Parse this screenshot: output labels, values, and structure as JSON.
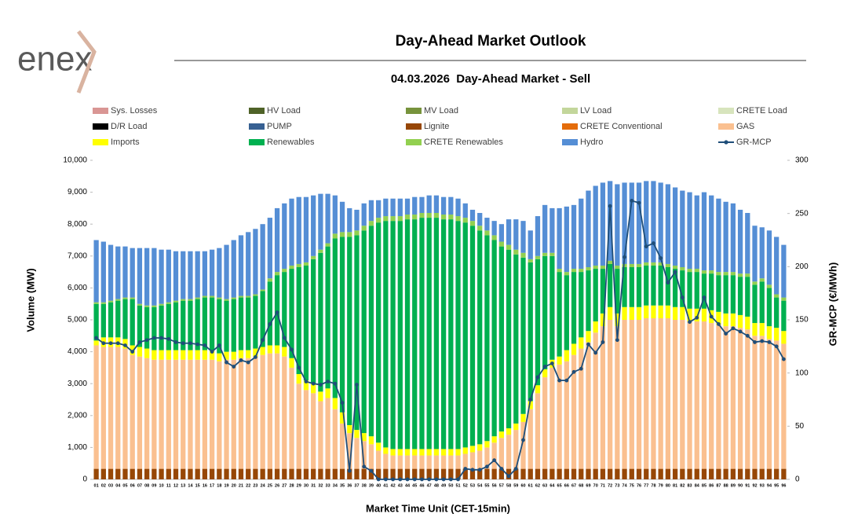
{
  "logo": "enex",
  "chart_data": {
    "type": "bar",
    "title": "Day-Ahead Market Outlook",
    "subtitle": "04.03.2026  Day-Ahead Market - Sell",
    "y_label": "Volume (MW)",
    "y2_label": "GR-MCP (€/MWh)",
    "x_label": "Market Time Unit (CET-15min)",
    "stacked": true,
    "grid": false,
    "categories": [
      "01",
      "02",
      "03",
      "04",
      "05",
      "06",
      "07",
      "08",
      "09",
      "10",
      "11",
      "12",
      "13",
      "14",
      "15",
      "16",
      "17",
      "18",
      "19",
      "20",
      "21",
      "22",
      "23",
      "24",
      "25",
      "26",
      "27",
      "28",
      "29",
      "30",
      "31",
      "32",
      "33",
      "34",
      "35",
      "36",
      "37",
      "38",
      "39",
      "40",
      "41",
      "42",
      "43",
      "44",
      "45",
      "46",
      "47",
      "48",
      "49",
      "50",
      "51",
      "52",
      "53",
      "54",
      "55",
      "56",
      "57",
      "58",
      "59",
      "60",
      "61",
      "62",
      "63",
      "64",
      "65",
      "66",
      "67",
      "68",
      "69",
      "70",
      "71",
      "72",
      "73",
      "74",
      "75",
      "76",
      "77",
      "78",
      "79",
      "80",
      "81",
      "82",
      "83",
      "84",
      "85",
      "86",
      "87",
      "88",
      "89",
      "90",
      "91",
      "92",
      "93",
      "94",
      "95",
      "96"
    ],
    "ylim": [
      0,
      10000
    ],
    "yticks": [
      0,
      {
        "value": 1000,
        "label": "1,000"
      },
      {
        "value": 2000,
        "label": "2,000"
      },
      {
        "value": 3000,
        "label": "3,000"
      },
      {
        "value": 4000,
        "label": "4,000"
      },
      {
        "value": 5000,
        "label": "5,000"
      },
      {
        "value": 6000,
        "label": "6,000"
      },
      {
        "value": 7000,
        "label": "7,000"
      },
      {
        "value": 8000,
        "label": "8,000"
      },
      {
        "value": 9000,
        "label": "9,000"
      },
      {
        "value": 10000,
        "label": "10,000"
      }
    ],
    "y2lim": [
      0,
      300
    ],
    "y2ticks": [
      0,
      50,
      100,
      150,
      200,
      250,
      300
    ],
    "series": [
      {
        "name": "Sys. Losses",
        "color": "#d99694"
      },
      {
        "name": "HV Load",
        "color": "#4f6228"
      },
      {
        "name": "MV Load",
        "color": "#77933c"
      },
      {
        "name": "LV Load",
        "color": "#c3d69b"
      },
      {
        "name": "CRETE Load",
        "color": "#d7e4bd"
      },
      {
        "name": "D/R Load",
        "color": "#000000"
      },
      {
        "name": "PUMP",
        "color": "#376092"
      },
      {
        "name": "Lignite",
        "color": "#974706",
        "values": [
          330,
          330,
          330,
          330,
          330,
          330,
          330,
          330,
          330,
          330,
          330,
          330,
          330,
          330,
          330,
          330,
          330,
          330,
          330,
          330,
          330,
          330,
          330,
          330,
          330,
          330,
          330,
          330,
          330,
          330,
          330,
          330,
          330,
          330,
          330,
          330,
          330,
          330,
          330,
          330,
          330,
          330,
          330,
          330,
          330,
          330,
          330,
          330,
          330,
          330,
          330,
          330,
          330,
          330,
          330,
          330,
          330,
          330,
          330,
          330,
          330,
          330,
          330,
          330,
          330,
          330,
          330,
          330,
          330,
          330,
          330,
          330,
          330,
          330,
          330,
          330,
          330,
          330,
          330,
          330,
          330,
          330,
          330,
          330,
          330,
          330,
          330,
          330,
          330,
          330,
          330,
          330,
          330,
          330,
          330,
          330
        ]
      },
      {
        "name": "CRETE Conventional",
        "color": "#e46c0a"
      },
      {
        "name": "GAS",
        "color": "#fac090",
        "values": [
          3870,
          3820,
          3820,
          3820,
          3770,
          3570,
          3520,
          3470,
          3420,
          3420,
          3420,
          3420,
          3420,
          3420,
          3420,
          3420,
          3420,
          3370,
          3420,
          3420,
          3470,
          3470,
          3520,
          3570,
          3620,
          3620,
          3520,
          3170,
          2670,
          2470,
          2370,
          2120,
          2220,
          1870,
          1420,
          1120,
          970,
          870,
          770,
          570,
          470,
          420,
          420,
          420,
          420,
          420,
          420,
          420,
          420,
          420,
          420,
          470,
          520,
          570,
          670,
          820,
          970,
          1070,
          1220,
          1470,
          1870,
          2370,
          2870,
          3170,
          3270,
          3370,
          3570,
          3770,
          3970,
          4270,
          4470,
          4670,
          4470,
          4670,
          4670,
          4670,
          4720,
          4720,
          4720,
          4720,
          4670,
          4670,
          4620,
          4620,
          4620,
          4570,
          4520,
          4470,
          4470,
          4420,
          4370,
          4170,
          4170,
          4070,
          4020,
          3920
        ]
      },
      {
        "name": "Imports",
        "color": "#ffff00",
        "values": [
          150,
          300,
          300,
          300,
          300,
          300,
          300,
          300,
          300,
          300,
          300,
          300,
          300,
          300,
          300,
          300,
          300,
          250,
          250,
          250,
          250,
          250,
          250,
          250,
          250,
          250,
          300,
          300,
          300,
          300,
          300,
          300,
          300,
          350,
          350,
          250,
          250,
          250,
          250,
          250,
          200,
          200,
          200,
          200,
          200,
          200,
          200,
          200,
          200,
          200,
          200,
          200,
          200,
          200,
          200,
          200,
          200,
          200,
          200,
          250,
          250,
          250,
          250,
          250,
          250,
          350,
          350,
          350,
          350,
          350,
          400,
          400,
          400,
          400,
          400,
          400,
          400,
          400,
          400,
          400,
          400,
          400,
          400,
          400,
          400,
          400,
          400,
          400,
          400,
          400,
          400,
          400,
          400,
          400,
          400,
          400
        ]
      },
      {
        "name": "Renewables",
        "color": "#00b050",
        "values": [
          1150,
          1050,
          1100,
          1150,
          1250,
          1450,
          1300,
          1300,
          1350,
          1400,
          1450,
          1500,
          1550,
          1550,
          1600,
          1650,
          1650,
          1700,
          1600,
          1650,
          1650,
          1650,
          1650,
          1750,
          2000,
          2200,
          2350,
          2800,
          3350,
          3600,
          3900,
          4350,
          4450,
          5000,
          5500,
          5900,
          6100,
          6350,
          6600,
          6900,
          7100,
          7150,
          7150,
          7200,
          7200,
          7250,
          7250,
          7250,
          7200,
          7200,
          7150,
          7050,
          6900,
          6700,
          6450,
          6150,
          5800,
          5600,
          5300,
          4900,
          4350,
          3950,
          3550,
          3250,
          2650,
          2350,
          2250,
          2050,
          1900,
          1650,
          1400,
          1350,
          1400,
          1250,
          1250,
          1250,
          1250,
          1250,
          1250,
          1200,
          1200,
          1150,
          1150,
          1150,
          1100,
          1150,
          1150,
          1200,
          1200,
          1200,
          1250,
          1200,
          1300,
          1200,
          950,
          950
        ]
      },
      {
        "name": "CRETE Renewables",
        "color": "#92d050",
        "values": [
          50,
          50,
          50,
          50,
          50,
          50,
          50,
          50,
          50,
          50,
          50,
          50,
          50,
          50,
          50,
          50,
          50,
          50,
          50,
          50,
          50,
          50,
          50,
          50,
          100,
          100,
          100,
          100,
          100,
          100,
          100,
          100,
          100,
          150,
          150,
          150,
          150,
          150,
          150,
          150,
          150,
          150,
          150,
          150,
          150,
          150,
          150,
          150,
          150,
          150,
          150,
          150,
          150,
          150,
          150,
          150,
          150,
          150,
          150,
          150,
          100,
          100,
          100,
          100,
          100,
          100,
          100,
          100,
          100,
          100,
          100,
          100,
          100,
          100,
          100,
          100,
          100,
          100,
          100,
          100,
          100,
          100,
          100,
          100,
          100,
          100,
          100,
          100,
          100,
          100,
          100,
          100,
          100,
          100,
          100,
          100
        ]
      },
      {
        "name": "Hydro",
        "color": "#558ed5",
        "values": [
          1950,
          1900,
          1750,
          1650,
          1600,
          1550,
          1750,
          1800,
          1800,
          1700,
          1650,
          1550,
          1500,
          1500,
          1450,
          1400,
          1450,
          1550,
          1700,
          1800,
          1900,
          2000,
          2050,
          2050,
          1900,
          2000,
          2050,
          2100,
          2100,
          2050,
          1900,
          1750,
          1550,
          1200,
          950,
          750,
          650,
          700,
          650,
          550,
          550,
          550,
          550,
          500,
          550,
          500,
          550,
          550,
          550,
          550,
          550,
          450,
          350,
          400,
          400,
          450,
          550,
          800,
          950,
          1000,
          900,
          1250,
          1500,
          1400,
          1900,
          2050,
          2000,
          2200,
          2400,
          2500,
          2600,
          2500,
          2550,
          2550,
          2550,
          2550,
          2550,
          2550,
          2500,
          2500,
          2450,
          2400,
          2400,
          2300,
          2450,
          2350,
          2300,
          2200,
          2150,
          2000,
          1900,
          1750,
          1600,
          1700,
          1800,
          1650
        ]
      },
      {
        "name": "GR-MCP",
        "color": "#1f4e79",
        "type": "line",
        "axis": "y2",
        "values": [
          133,
          128,
          128,
          128,
          126,
          120,
          129,
          131,
          133,
          133,
          132,
          129,
          128,
          128,
          127,
          126,
          120,
          126,
          110,
          106,
          112,
          110,
          115,
          131,
          146,
          157,
          133,
          122,
          105,
          92,
          90,
          89,
          92,
          90,
          72,
          8,
          89,
          12,
          8,
          0,
          0,
          0,
          0,
          0,
          0,
          0,
          0,
          0,
          0,
          0,
          0,
          10,
          9,
          9,
          12,
          18,
          10,
          3,
          10,
          37,
          75,
          96,
          106,
          109,
          93,
          93,
          101,
          104,
          127,
          119,
          129,
          257,
          131,
          209,
          262,
          260,
          219,
          222,
          208,
          185,
          195,
          171,
          148,
          152,
          171,
          153,
          146,
          137,
          142,
          139,
          135,
          129,
          130,
          129,
          125,
          113
        ]
      }
    ]
  }
}
